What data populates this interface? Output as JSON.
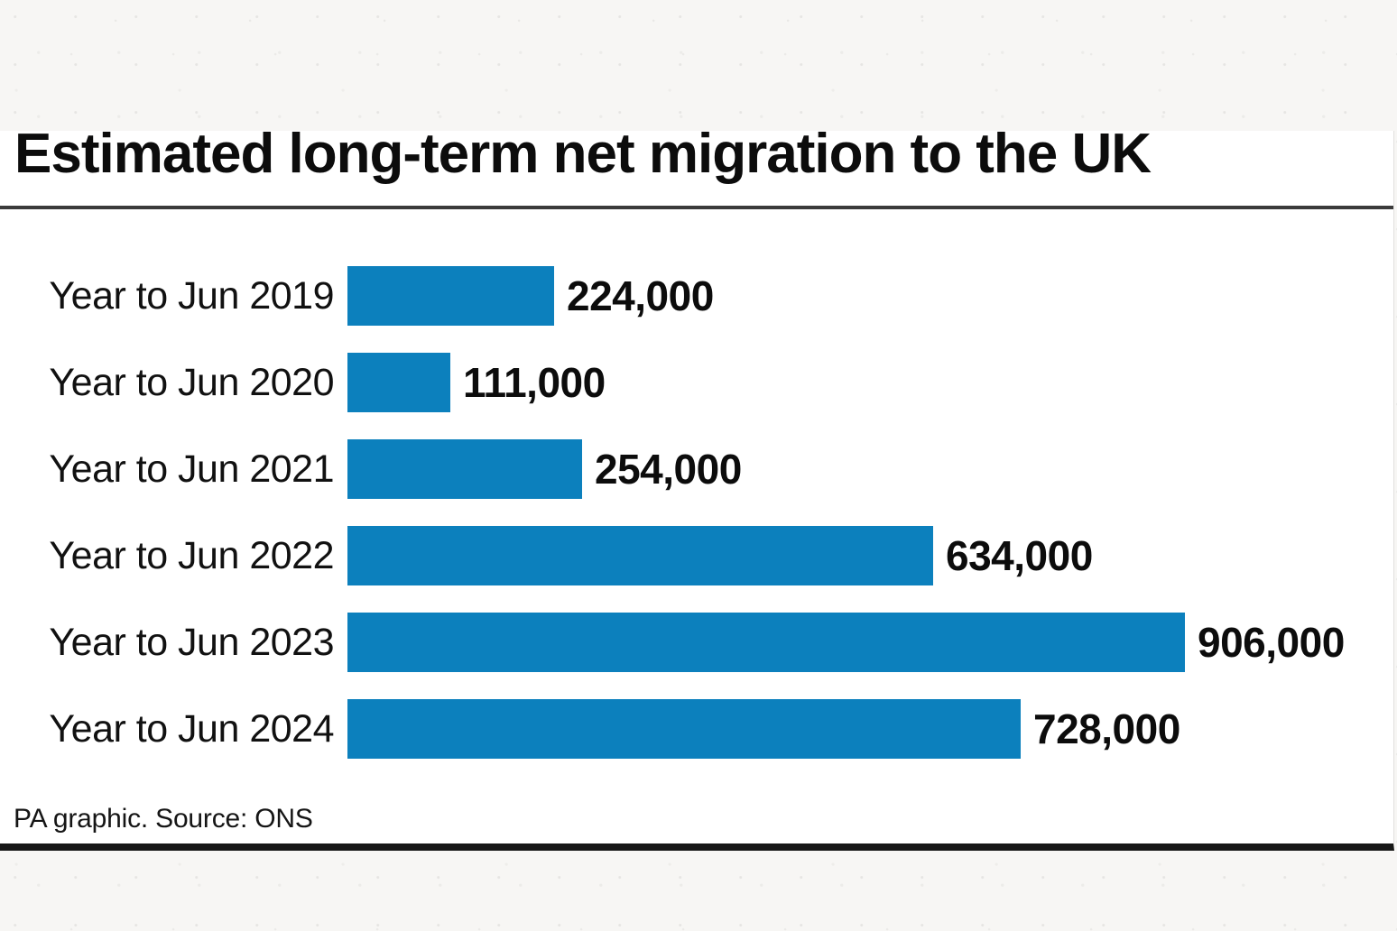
{
  "chart_data": {
    "type": "bar",
    "orientation": "horizontal",
    "title": "Estimated long-term net migration to the UK",
    "categories": [
      "Year to Jun 2019",
      "Year to Jun 2020",
      "Year to Jun 2021",
      "Year to Jun 2022",
      "Year to Jun 2023",
      "Year to Jun 2024"
    ],
    "values": [
      224000,
      111000,
      254000,
      634000,
      906000,
      728000
    ],
    "value_labels": [
      "224,000",
      "111,000",
      "254,000",
      "634,000",
      "906,000",
      "728,000"
    ],
    "xlim": [
      0,
      906000
    ],
    "bar_color": "#0c80bd",
    "grid": false,
    "legend": false,
    "source": "PA graphic. Source: ONS"
  },
  "colors": {
    "bar_blue": "#0c80bd",
    "title_rule": "#3b3b3b",
    "bottom_rule": "#171717",
    "paper": "#f7f6f4",
    "card": "#ffffff"
  }
}
